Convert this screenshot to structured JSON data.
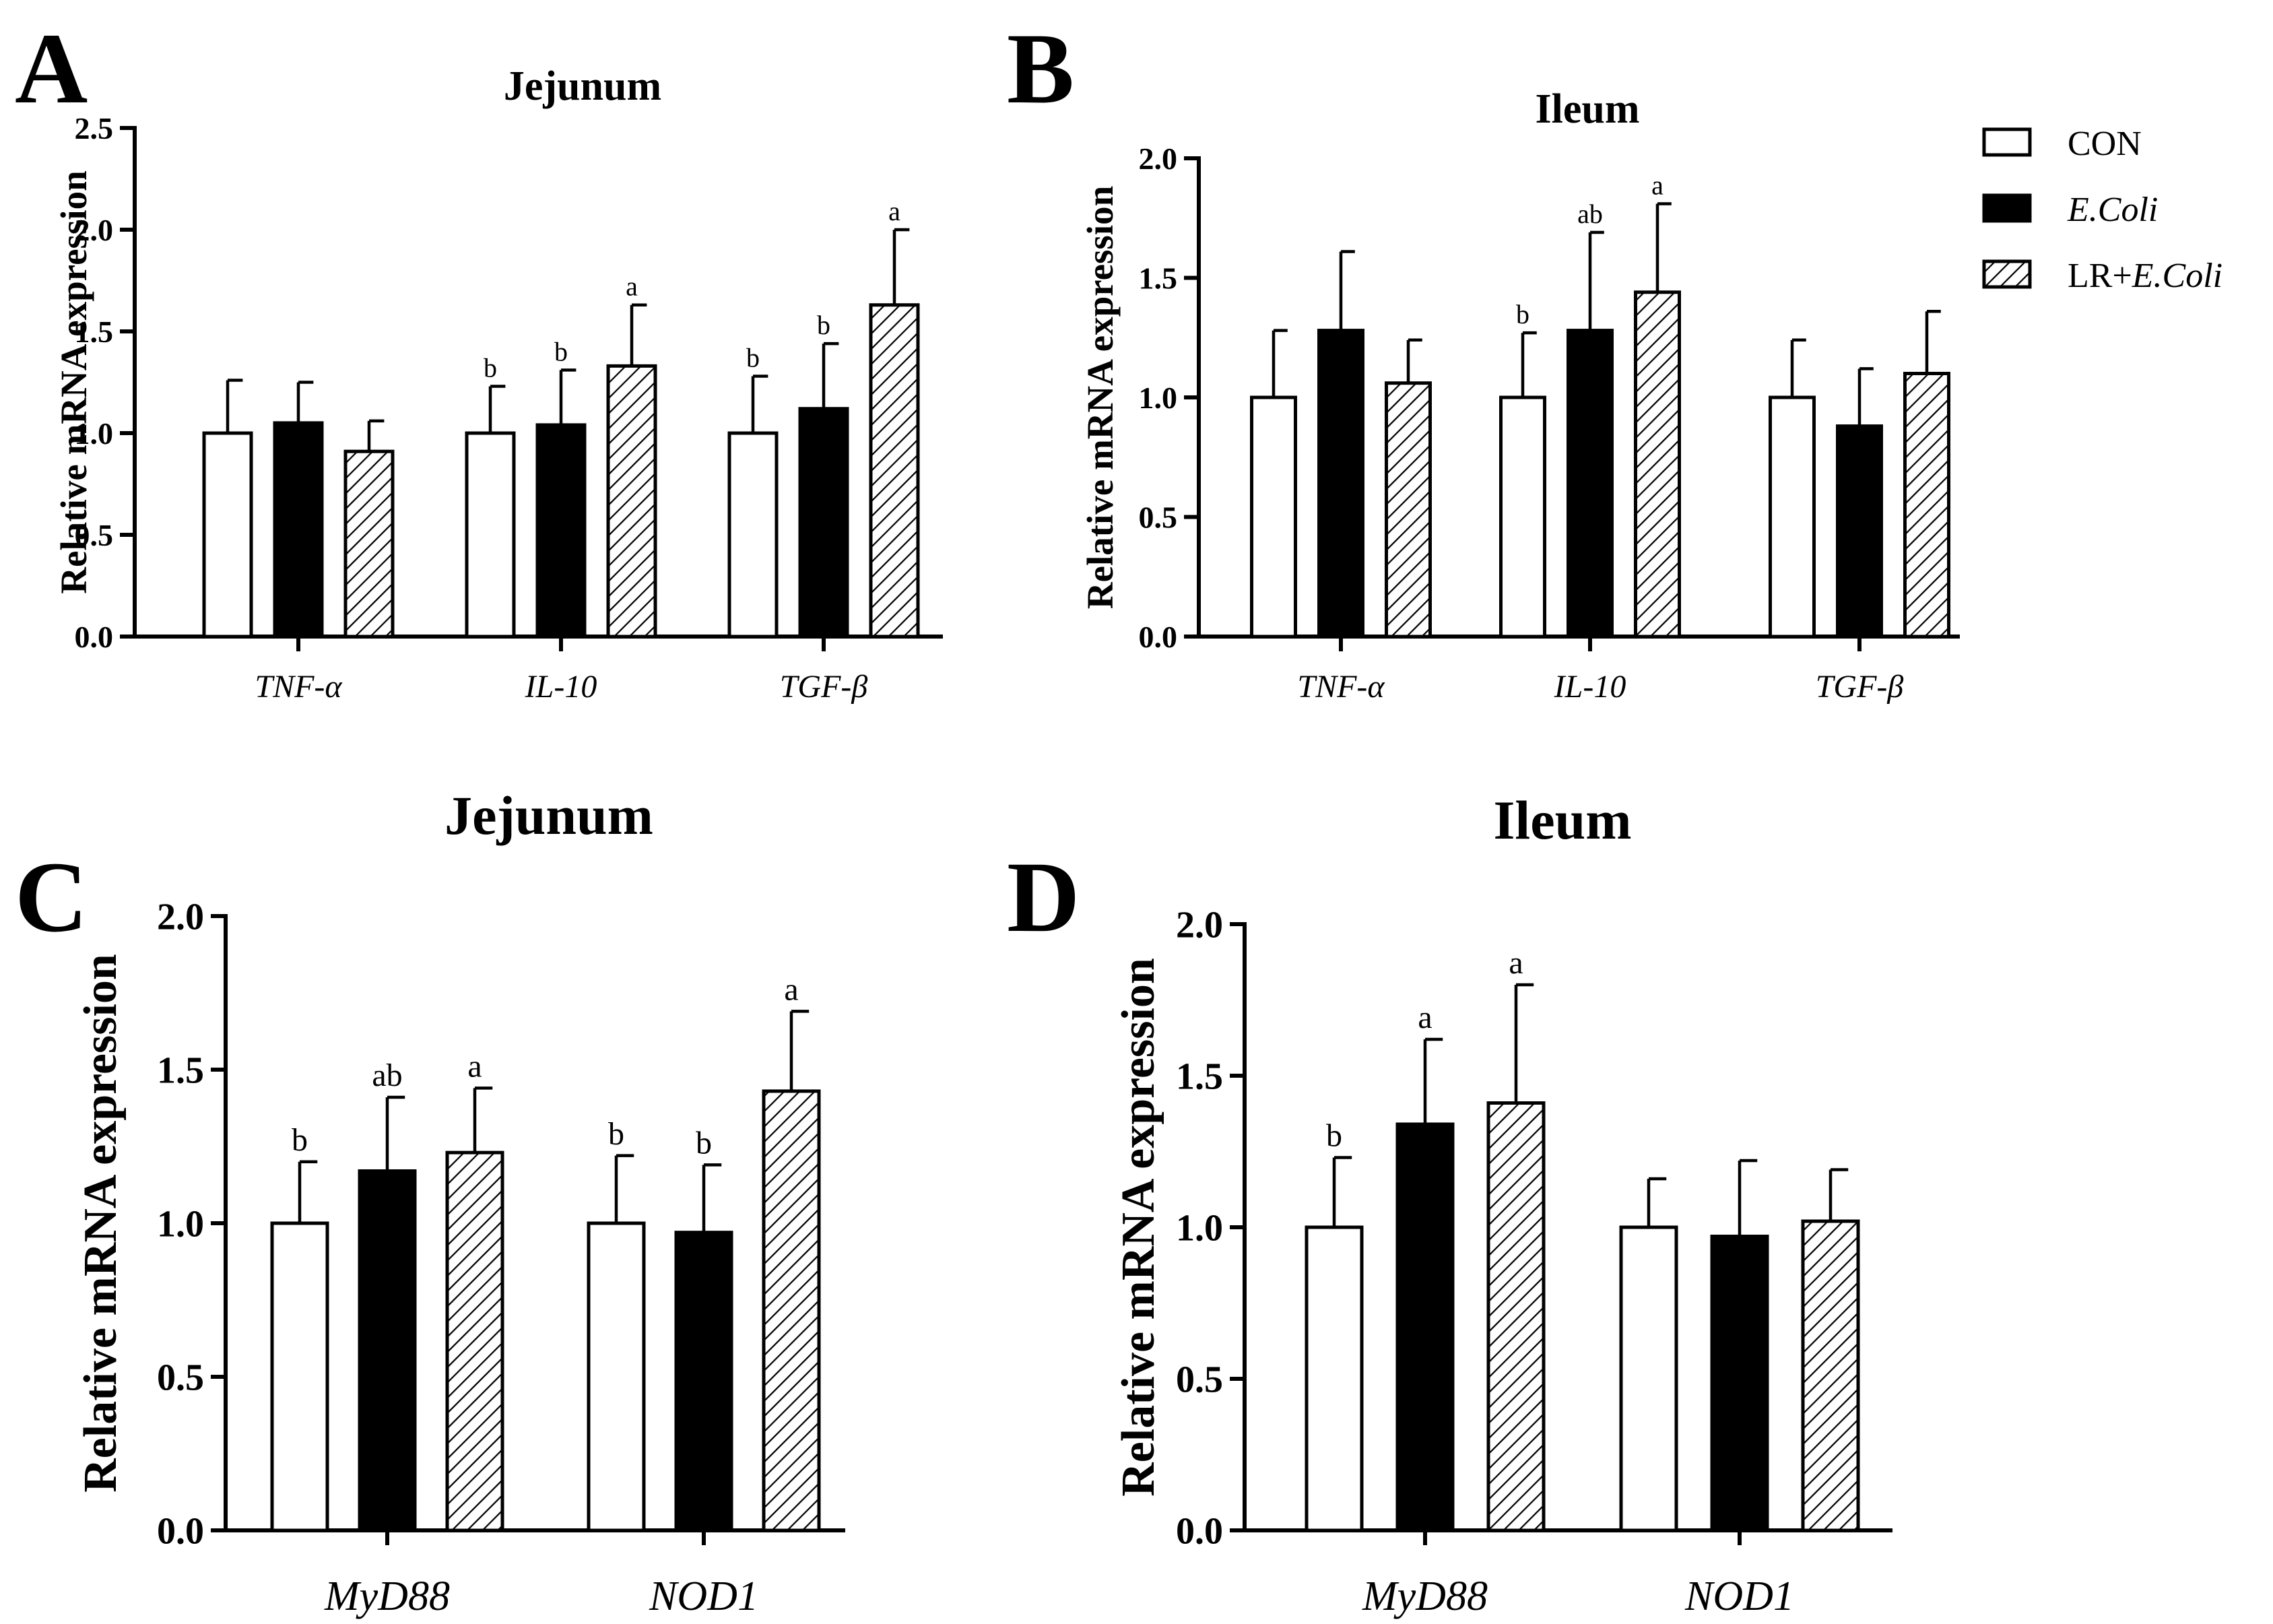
{
  "legend": [
    {
      "text": "CON",
      "pre": "CON",
      "ital": "",
      "fill": "white"
    },
    {
      "text": "E.Coli",
      "pre": "",
      "ital": "E.Coli",
      "fill": "black"
    },
    {
      "text": "LR+E.Coli",
      "pre": "LR+",
      "ital": "E.Coli",
      "fill": "hatch"
    }
  ],
  "chart_data": [
    {
      "panel": "A",
      "type": "bar",
      "title": "Jejunum",
      "ylabel": "Relative mRNA expression",
      "ylim": [
        0,
        2.5
      ],
      "yticks": [
        "0.0",
        "0.5",
        "1.0",
        "1.5",
        "2.0",
        "2.5"
      ],
      "categories": [
        "TNF-α",
        "IL-10",
        "TGF-β"
      ],
      "series": [
        {
          "name": "CON",
          "values": [
            1.0,
            1.0,
            1.0
          ],
          "errors": [
            0.26,
            0.23,
            0.28
          ],
          "sig": [
            "",
            "b",
            "b"
          ]
        },
        {
          "name": "E.Coli",
          "values": [
            1.05,
            1.04,
            1.12
          ],
          "errors": [
            0.2,
            0.27,
            0.32
          ],
          "sig": [
            "",
            "b",
            "b"
          ]
        },
        {
          "name": "LR+E.Coli",
          "values": [
            0.91,
            1.33,
            1.63
          ],
          "errors": [
            0.15,
            0.3,
            0.37
          ],
          "sig": [
            "",
            "a",
            "a"
          ]
        }
      ]
    },
    {
      "panel": "B",
      "type": "bar",
      "title": "Ileum",
      "ylabel": "Relative mRNA expression",
      "ylim": [
        0,
        2.0
      ],
      "yticks": [
        "0.0",
        "0.5",
        "1.0",
        "1.5",
        "2.0"
      ],
      "categories": [
        "TNF-α",
        "IL-10",
        "TGF-β"
      ],
      "series": [
        {
          "name": "CON",
          "values": [
            1.0,
            1.0,
            1.0
          ],
          "errors": [
            0.28,
            0.27,
            0.24
          ],
          "sig": [
            "",
            "b",
            ""
          ]
        },
        {
          "name": "E.Coli",
          "values": [
            1.28,
            1.28,
            0.88
          ],
          "errors": [
            0.33,
            0.41,
            0.24
          ],
          "sig": [
            "",
            "ab",
            ""
          ]
        },
        {
          "name": "LR+E.Coli",
          "values": [
            1.06,
            1.44,
            1.1
          ],
          "errors": [
            0.18,
            0.37,
            0.26
          ],
          "sig": [
            "",
            "a",
            ""
          ]
        }
      ]
    },
    {
      "panel": "C",
      "type": "bar",
      "title": "Jejunum",
      "ylabel": "Relative mRNA expression",
      "ylim": [
        0,
        2.0
      ],
      "yticks": [
        "0.0",
        "0.5",
        "1.0",
        "1.5",
        "2.0"
      ],
      "categories": [
        "MyD88",
        "NOD1"
      ],
      "series": [
        {
          "name": "CON",
          "values": [
            1.0,
            1.0
          ],
          "errors": [
            0.2,
            0.22
          ],
          "sig": [
            "b",
            "b"
          ]
        },
        {
          "name": "E.Coli",
          "values": [
            1.17,
            0.97
          ],
          "errors": [
            0.24,
            0.22
          ],
          "sig": [
            "ab",
            "b"
          ]
        },
        {
          "name": "LR+E.Coli",
          "values": [
            1.23,
            1.43
          ],
          "errors": [
            0.21,
            0.26
          ],
          "sig": [
            "a",
            "a"
          ]
        }
      ]
    },
    {
      "panel": "D",
      "type": "bar",
      "title": "Ileum",
      "ylabel": "Relative mRNA expression",
      "ylim": [
        0,
        2.0
      ],
      "yticks": [
        "0.0",
        "0.5",
        "1.0",
        "1.5",
        "2.0"
      ],
      "categories": [
        "MyD88",
        "NOD1"
      ],
      "series": [
        {
          "name": "CON",
          "values": [
            1.0,
            1.0
          ],
          "errors": [
            0.23,
            0.16
          ],
          "sig": [
            "b",
            ""
          ]
        },
        {
          "name": "E.Coli",
          "values": [
            1.34,
            0.97
          ],
          "errors": [
            0.28,
            0.25
          ],
          "sig": [
            "a",
            ""
          ]
        },
        {
          "name": "LR+E.Coli",
          "values": [
            1.41,
            1.02
          ],
          "errors": [
            0.39,
            0.17
          ],
          "sig": [
            "a",
            ""
          ]
        }
      ]
    }
  ]
}
